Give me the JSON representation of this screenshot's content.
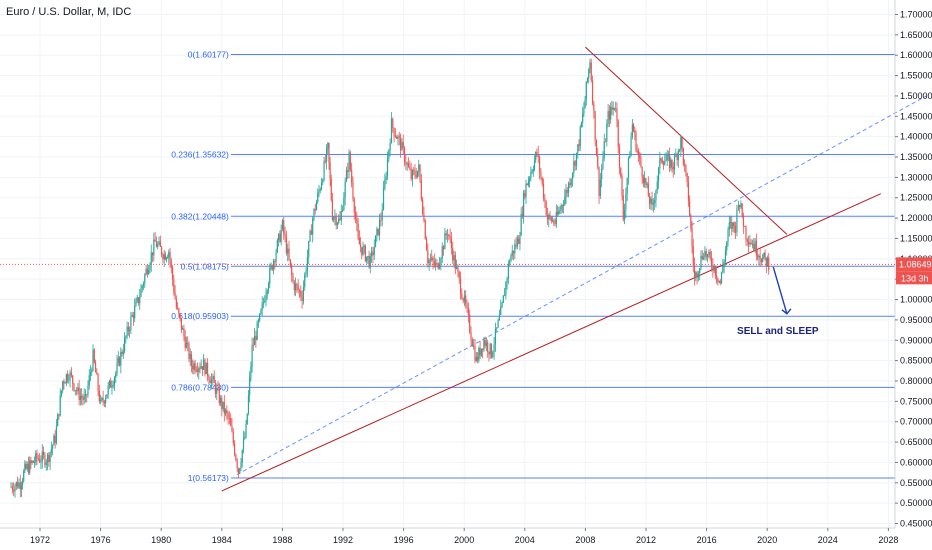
{
  "chart_data": {
    "type": "candlestick",
    "title": "Euro / U.S. Dollar, M, IDC",
    "x_ticks": [
      "1972",
      "1976",
      "1980",
      "1984",
      "1988",
      "1992",
      "1996",
      "2000",
      "2004",
      "2008",
      "2012",
      "2016",
      "2020",
      "2024",
      "2028"
    ],
    "y_ticks": [
      "1.70000",
      "1.65000",
      "1.60000",
      "1.55000",
      "1.50000",
      "1.45000",
      "1.40000",
      "1.35000",
      "1.30000",
      "1.25000",
      "1.20000",
      "1.15000",
      "1.10000",
      "1.05000",
      "1.00000",
      "0.95000",
      "0.90000",
      "0.85000",
      "0.80000",
      "0.75000",
      "0.70000",
      "0.65000",
      "0.60000",
      "0.55000",
      "0.50000",
      "0.45000"
    ],
    "ylim": [
      0.45,
      1.7
    ],
    "xlim": [
      1969.5,
      2030.7
    ],
    "price_path": [
      [
        1970.0,
        0.54
      ],
      [
        1970.7,
        0.55
      ],
      [
        1971.0,
        0.58
      ],
      [
        1971.8,
        0.61
      ],
      [
        1972.5,
        0.61
      ],
      [
        1973.0,
        0.66
      ],
      [
        1973.5,
        0.8
      ],
      [
        1973.9,
        0.82
      ],
      [
        1974.5,
        0.77
      ],
      [
        1975.0,
        0.75
      ],
      [
        1975.5,
        0.86
      ],
      [
        1976.0,
        0.74
      ],
      [
        1977.0,
        0.82
      ],
      [
        1978.0,
        0.95
      ],
      [
        1978.5,
        1.0
      ],
      [
        1979.0,
        1.07
      ],
      [
        1979.6,
        1.14
      ],
      [
        1980.2,
        1.11
      ],
      [
        1980.5,
        1.12
      ],
      [
        1981.0,
        0.98
      ],
      [
        1982.0,
        0.84
      ],
      [
        1982.8,
        0.84
      ],
      [
        1983.5,
        0.79
      ],
      [
        1984.0,
        0.74
      ],
      [
        1984.5,
        0.7
      ],
      [
        1985.1,
        0.58
      ],
      [
        1985.6,
        0.68
      ],
      [
        1986.0,
        0.88
      ],
      [
        1986.5,
        0.95
      ],
      [
        1987.0,
        1.04
      ],
      [
        1988.0,
        1.18
      ],
      [
        1988.7,
        1.04
      ],
      [
        1989.3,
        1.01
      ],
      [
        1990.0,
        1.2
      ],
      [
        1990.5,
        1.28
      ],
      [
        1991.0,
        1.37
      ],
      [
        1991.3,
        1.21
      ],
      [
        1991.8,
        1.19
      ],
      [
        1992.4,
        1.35
      ],
      [
        1993.0,
        1.14
      ],
      [
        1993.8,
        1.09
      ],
      [
        1994.5,
        1.2
      ],
      [
        1995.2,
        1.43
      ],
      [
        1995.8,
        1.38
      ],
      [
        1996.5,
        1.3
      ],
      [
        1997.0,
        1.32
      ],
      [
        1997.6,
        1.1
      ],
      [
        1998.2,
        1.08
      ],
      [
        1998.9,
        1.17
      ],
      [
        1999.5,
        1.07
      ],
      [
        2000.1,
        0.98
      ],
      [
        2000.8,
        0.85
      ],
      [
        2001.3,
        0.9
      ],
      [
        2001.8,
        0.87
      ],
      [
        2002.5,
        0.98
      ],
      [
        2003.0,
        1.1
      ],
      [
        2003.6,
        1.15
      ],
      [
        2004.0,
        1.27
      ],
      [
        2004.8,
        1.36
      ],
      [
        2005.5,
        1.2
      ],
      [
        2006.0,
        1.19
      ],
      [
        2006.8,
        1.27
      ],
      [
        2007.5,
        1.37
      ],
      [
        2007.9,
        1.47
      ],
      [
        2008.3,
        1.59
      ],
      [
        2008.9,
        1.27
      ],
      [
        2009.5,
        1.45
      ],
      [
        2010.0,
        1.48
      ],
      [
        2010.5,
        1.2
      ],
      [
        2011.1,
        1.43
      ],
      [
        2011.5,
        1.35
      ],
      [
        2012.4,
        1.22
      ],
      [
        2013.0,
        1.35
      ],
      [
        2013.8,
        1.33
      ],
      [
        2014.3,
        1.39
      ],
      [
        2014.8,
        1.25
      ],
      [
        2015.2,
        1.05
      ],
      [
        2015.8,
        1.12
      ],
      [
        2016.5,
        1.08
      ],
      [
        2016.9,
        1.04
      ],
      [
        2017.5,
        1.18
      ],
      [
        2017.9,
        1.18
      ],
      [
        2018.1,
        1.25
      ],
      [
        2018.6,
        1.16
      ],
      [
        2019.2,
        1.13
      ],
      [
        2019.7,
        1.1
      ],
      [
        2020.1,
        1.09
      ]
    ],
    "last_price": "1.08649",
    "countdown": "13d 3h",
    "last_price_color": "#ef5350",
    "up_color": "#26a69a",
    "down_color": "#ef5350",
    "fib_color": "#2962ff",
    "trend_color": "#b71c1c",
    "fib_levels": [
      {
        "label": "0(1.60177)",
        "value": 1.60177
      },
      {
        "label": "0.236(1.35632)",
        "value": 1.35632
      },
      {
        "label": "0.382(1.20448)",
        "value": 1.20448
      },
      {
        "label": "0.5(1.08175)",
        "value": 1.08175
      },
      {
        "label": "0.618(0.95903)",
        "value": 0.95903
      },
      {
        "label": "0.786(0.78430)",
        "value": 0.7843
      },
      {
        "label": "1(0.56173)",
        "value": 0.56173
      }
    ],
    "fib_x_start": 1984.6,
    "fib_x_end": 2030.7,
    "trendlines": [
      {
        "name": "support",
        "style": "solid",
        "x1": 1984.0,
        "y1": 0.53,
        "x2": 2027.5,
        "y2": 1.26
      },
      {
        "name": "resistance",
        "style": "solid",
        "x1": 2008.0,
        "y1": 1.62,
        "x2": 2021.3,
        "y2": 1.16
      },
      {
        "name": "extended",
        "style": "dashed",
        "x1": 1985.0,
        "y1": 0.57,
        "x2": 2030.5,
        "y2": 1.5
      }
    ],
    "arrow": {
      "x1": 2020.4,
      "y1": 1.08,
      "x2": 2021.3,
      "y2": 0.965
    },
    "annotation": {
      "text": "SELL and SLEEP",
      "x": 2020.7,
      "y": 0.915
    }
  }
}
